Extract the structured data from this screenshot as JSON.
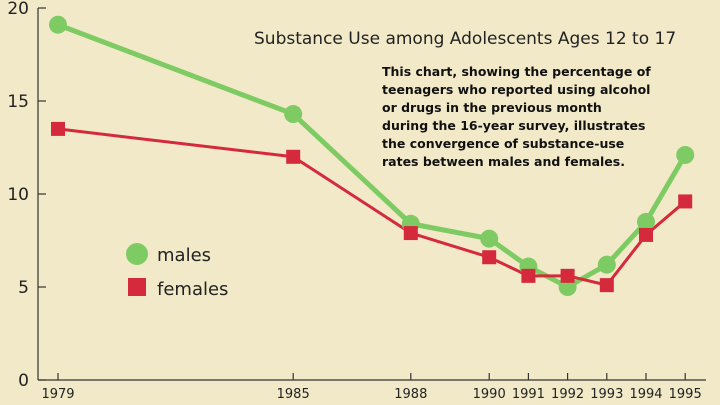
{
  "chart_data": {
    "type": "line",
    "title": "Substance Use among Adolescents Ages 12 to 17",
    "annotation": [
      "This chart, showing the percentage of",
      "teenagers who reported using alcohol",
      "or drugs in the previous month",
      "during the 16-year survey, illustrates",
      "the convergence of substance-use",
      "rates between males and females."
    ],
    "x": [
      "1979",
      "1985",
      "1988",
      "1990",
      "1991",
      "1992",
      "1993",
      "1994",
      "1995"
    ],
    "y_ticks": [
      "0",
      "5",
      "10",
      "15",
      "20"
    ],
    "ylim": [
      0,
      20
    ],
    "grid": false,
    "legend_position": "middle-left",
    "series": [
      {
        "name": "males",
        "color": "#7ecb64",
        "marker": "circle",
        "values": [
          19.1,
          14.3,
          8.4,
          7.6,
          6.1,
          5.0,
          6.2,
          8.5,
          12.1
        ]
      },
      {
        "name": "females",
        "color": "#d42a3c",
        "marker": "square",
        "values": [
          13.5,
          12.0,
          7.9,
          6.6,
          5.6,
          5.6,
          5.1,
          7.8,
          9.6
        ]
      }
    ]
  }
}
